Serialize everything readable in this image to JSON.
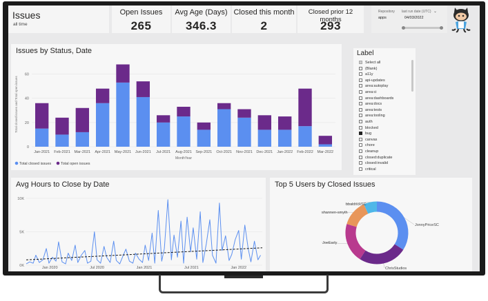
{
  "header": {
    "title": "Issues",
    "subtitle": "all time"
  },
  "kpis": [
    {
      "label": "Open Issues",
      "value": "265"
    },
    {
      "label": "Avg Age (Days)",
      "value": "346.3"
    },
    {
      "label": "Closed this month",
      "value": "2"
    },
    {
      "label": "Closed prior 12 months",
      "value": "293"
    }
  ],
  "filter": {
    "repository_label": "Repository",
    "repository_value": "apps",
    "last_run_label": "last run date (UTC)",
    "last_run_value": "04/03/2022"
  },
  "mascot": {
    "icon": "octocat-icon"
  },
  "status_chart": {
    "title": "Issues by Status, Date",
    "chart_data": {
      "type": "bar",
      "stacked": true,
      "categories": [
        "Jan-2021",
        "Feb-2021",
        "Mar-2021",
        "Apr-2021",
        "May-2021",
        "Jun-2021",
        "Jul-2021",
        "Aug-2021",
        "Sep-2021",
        "Oct-2021",
        "Nov-2021",
        "Dec-2021",
        "Jan-2022",
        "Feb-2022",
        "Mar-2022"
      ],
      "series": [
        {
          "name": "Total closed issues",
          "color": "#5b8ff0",
          "values": [
            15,
            10,
            12,
            36,
            53,
            41,
            20,
            25,
            14,
            31,
            24,
            14,
            14,
            17,
            2
          ]
        },
        {
          "name": "Total open issues",
          "color": "#6b2a8a",
          "values": [
            21,
            14,
            20,
            12,
            15,
            13,
            6,
            8,
            6,
            5,
            7,
            12,
            11,
            31,
            7
          ]
        }
      ],
      "yticks": [
        "0",
        "20",
        "40",
        "60"
      ],
      "ylim": [
        0,
        70
      ],
      "xlabel": "MonthYear",
      "ylabel": "Total closed issues and Total open issues",
      "legend": "bottom-left"
    }
  },
  "label_slicer": {
    "title": "Label",
    "items": [
      {
        "label": "Select all",
        "state": "partial"
      },
      {
        "label": "(Blank)",
        "state": "off"
      },
      {
        "label": "a11y",
        "state": "off"
      },
      {
        "label": "api-updates",
        "state": "off"
      },
      {
        "label": "area:autoplay",
        "state": "off"
      },
      {
        "label": "area:ci",
        "state": "off"
      },
      {
        "label": "area:dashboards",
        "state": "off"
      },
      {
        "label": "area:docs",
        "state": "off"
      },
      {
        "label": "area:tests",
        "state": "off"
      },
      {
        "label": "area:tooling",
        "state": "off"
      },
      {
        "label": "auth",
        "state": "off"
      },
      {
        "label": "blocked",
        "state": "off"
      },
      {
        "label": "bug",
        "state": "on"
      },
      {
        "label": "canvas",
        "state": "off"
      },
      {
        "label": "chore",
        "state": "off"
      },
      {
        "label": "cleanup",
        "state": "off"
      },
      {
        "label": "closed:duplicate",
        "state": "off"
      },
      {
        "label": "closed:invalid",
        "state": "off"
      },
      {
        "label": "critical",
        "state": "off"
      }
    ]
  },
  "hours_chart": {
    "title": "Avg Hours to Close by Date",
    "chart_data": {
      "type": "line",
      "series_name": "Avg Hours to Close",
      "color": "#5b8ff0",
      "trend_color": "#111111",
      "ylim": [
        0,
        10000
      ],
      "yticks": [
        "0K",
        "5K",
        "10K"
      ],
      "xticks": [
        "Jan 2020",
        "Jul 2020",
        "Jan 2021",
        "Jul 2021",
        "Jan 2022"
      ],
      "xrange": [
        0,
        27
      ],
      "x": [
        0,
        0.4,
        0.8,
        1.1,
        1.5,
        1.9,
        2.3,
        2.6,
        3.0,
        3.4,
        3.7,
        4.1,
        4.5,
        4.8,
        5.2,
        5.6,
        5.9,
        6.3,
        6.7,
        7.0,
        7.4,
        7.8,
        8.1,
        8.5,
        8.9,
        9.2,
        9.6,
        10,
        10.3,
        10.7,
        11.1,
        11.4,
        11.8,
        12.2,
        12.5,
        12.9,
        13.3,
        13.6,
        14,
        14.4,
        14.7,
        15.1,
        15.5,
        15.8,
        16.2,
        16.6,
        16.9,
        17.3,
        17.7,
        18,
        18.4,
        18.8,
        19.1,
        19.5,
        19.9,
        20.2,
        20.6,
        21,
        21.3,
        21.7,
        22.1,
        22.4,
        22.8,
        23.2,
        23.5,
        23.9,
        24.3,
        24.6,
        25,
        25.4,
        25.7,
        26.1,
        26.5,
        26.8
      ],
      "values": [
        200,
        500,
        300,
        1500,
        400,
        800,
        2500,
        300,
        1200,
        600,
        3500,
        500,
        200,
        1800,
        700,
        3000,
        400,
        1500,
        2200,
        300,
        600,
        5000,
        800,
        300,
        2800,
        1200,
        400,
        3600,
        700,
        200,
        1500,
        2400,
        600,
        300,
        1800,
        900,
        400,
        3000,
        700,
        4800,
        300,
        8200,
        600,
        2500,
        9800,
        800,
        4500,
        1200,
        6600,
        300,
        7200,
        2000,
        5600,
        900,
        8000,
        400,
        3200,
        6800,
        1500,
        300,
        9300,
        2200,
        4400,
        700,
        1600,
        3800,
        5200,
        900,
        6000,
        2400,
        500,
        3600,
        800,
        1500
      ],
      "trend": [
        800,
        2600
      ]
    }
  },
  "donut_chart": {
    "title": "Top 5 Users by Closed Issues",
    "chart_data": {
      "type": "pie",
      "donut": true,
      "labels": [
        "JonnyPriceSC",
        "ChrisStudios",
        "JoeEarly",
        "shannen-smyth",
        "bbaldrickSC"
      ],
      "values": [
        30,
        22,
        18,
        12,
        6
      ],
      "colors": [
        "#5b8ff0",
        "#6b2a8a",
        "#b83a8e",
        "#e8965a",
        "#4fb7e8"
      ]
    }
  }
}
